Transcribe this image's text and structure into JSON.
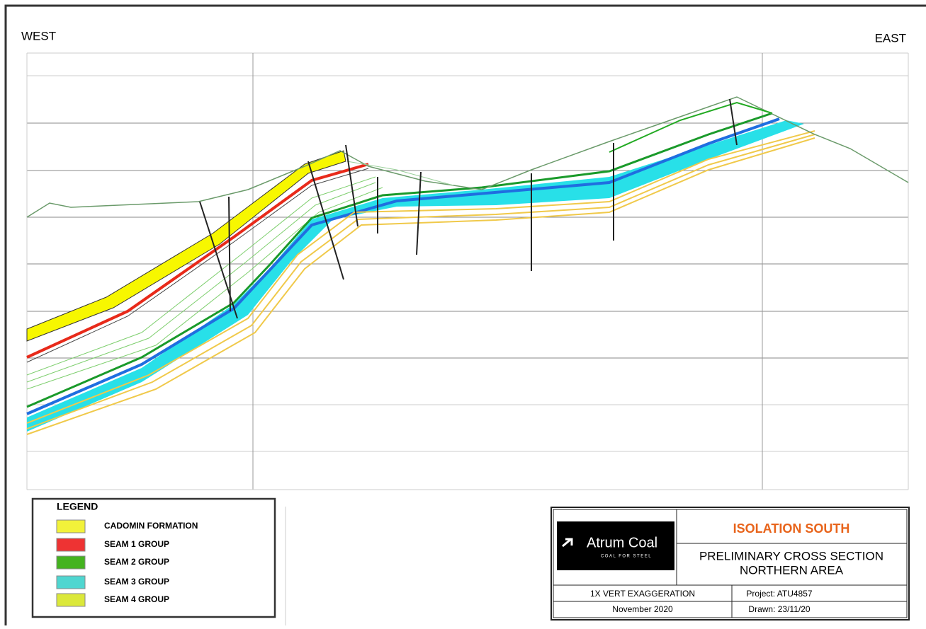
{
  "header": {
    "west": "WEST",
    "east": "EAST"
  },
  "legend": {
    "title": "LEGEND",
    "items": [
      {
        "label": "CADOMIN FORMATION",
        "color": "#f2f23a"
      },
      {
        "label": "SEAM 1 GROUP",
        "color": "#ee3333"
      },
      {
        "label": "SEAM 2 GROUP",
        "color": "#44b31f"
      },
      {
        "label": "SEAM 3 GROUP",
        "color": "#4fd6d0"
      },
      {
        "label": "SEAM 4 GROUP",
        "color": "#dbe83a"
      }
    ]
  },
  "title_block": {
    "logo": "Atrum Coal",
    "logo_tagline": "COAL FOR STEEL",
    "project_name": "ISOLATION SOUTH",
    "subtitle_1": "PRELIMINARY CROSS SECTION",
    "subtitle_2": "NORTHERN AREA",
    "exaggeration": "1X VERT EXAGGERATION",
    "project": "Project: ATU4857",
    "date": "November 2020",
    "drawn": "Drawn: 23/11/20"
  }
}
